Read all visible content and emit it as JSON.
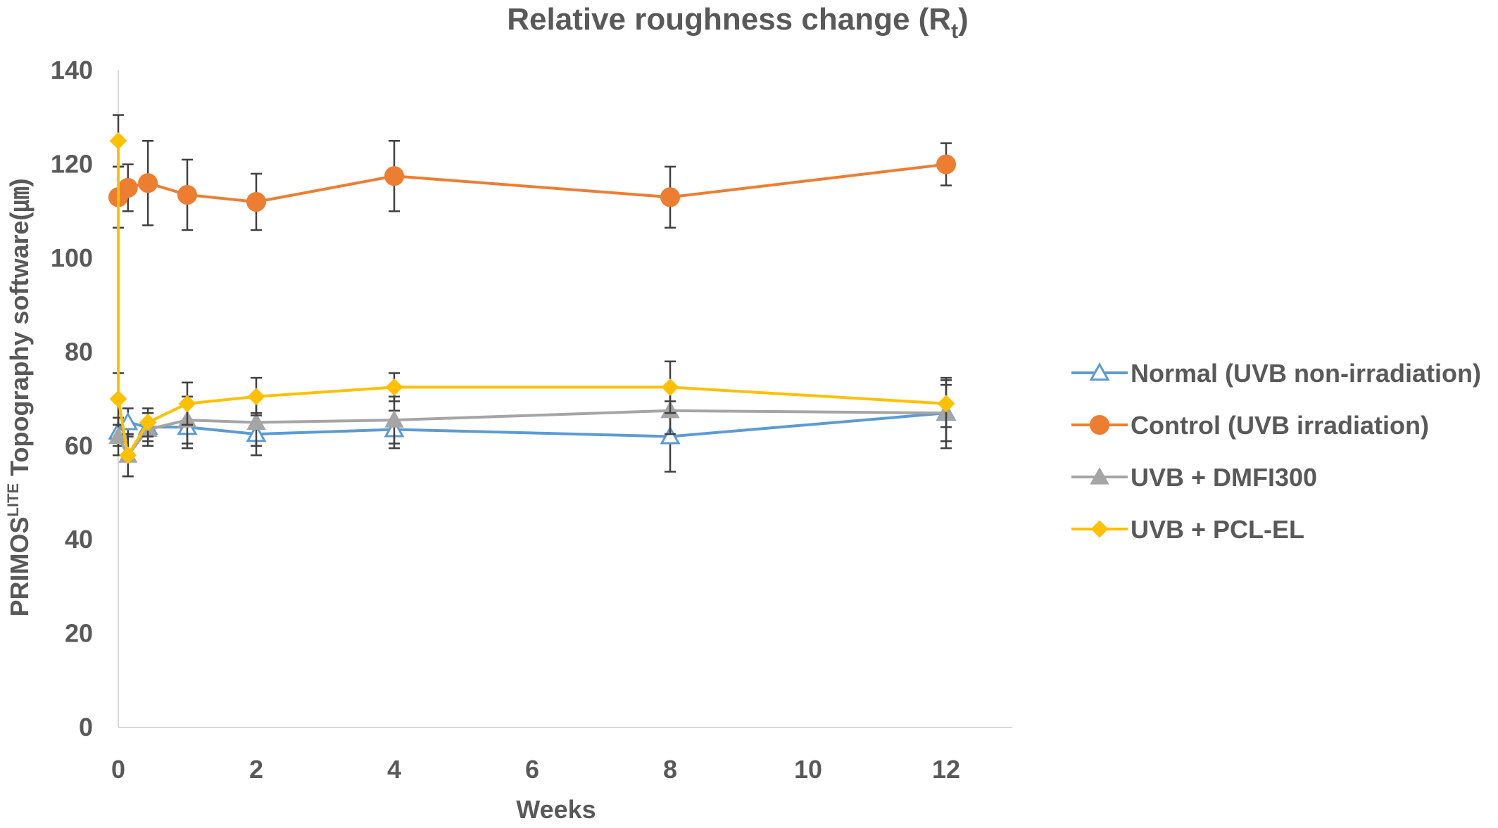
{
  "chart_data": {
    "type": "line",
    "title": "Relative roughness change (R",
    "title_subscript": "t",
    "title_close": ")",
    "xlabel": "Weeks",
    "ylabel_main": "PRIMOS",
    "ylabel_super": "LITE",
    "ylabel_rest": " Topography  software(㎛)",
    "xlim": [
      0,
      13
    ],
    "ylim": [
      0,
      140
    ],
    "xticks": [
      0,
      2,
      4,
      6,
      8,
      10,
      12
    ],
    "yticks": [
      0,
      20,
      40,
      60,
      80,
      100,
      120,
      140
    ],
    "grid": false,
    "legend_position": "right",
    "series": [
      {
        "name": "Normal (UVB non-irradiation)",
        "color": "#5B9BD5",
        "marker": "triangle-open",
        "x": [
          0,
          0.14,
          0.43,
          1,
          2,
          4,
          8,
          12
        ],
        "y": [
          63,
          65,
          64,
          64,
          62.5,
          63.5,
          62,
          67
        ],
        "err": [
          3,
          3,
          3,
          4.5,
          4.5,
          4,
          7.5,
          7.5
        ]
      },
      {
        "name": "Control (UVB irradiation)",
        "color": "#ED7D31",
        "marker": "circle",
        "x": [
          0,
          0.14,
          0.43,
          1,
          2,
          4,
          8,
          12
        ],
        "y": [
          113,
          115,
          116,
          113.5,
          112,
          117.5,
          113,
          120
        ],
        "err": [
          6.5,
          5,
          9,
          7.5,
          6,
          7.5,
          6.5,
          4.5
        ]
      },
      {
        "name": "UVB + DMFI300",
        "color": "#A5A5A5",
        "marker": "triangle",
        "x": [
          0,
          0.14,
          0.43,
          1,
          2,
          4,
          8,
          12
        ],
        "y": [
          62,
          58,
          63.5,
          65.5,
          65,
          65.5,
          67.5,
          67
        ],
        "err": [
          4,
          4.5,
          3.5,
          5,
          5,
          5,
          5,
          6
        ]
      },
      {
        "name": "UVB + PCL-EL",
        "color": "#FFC000",
        "marker": "diamond",
        "x": [
          0,
          0,
          0.14,
          0.43,
          1,
          2,
          4,
          8,
          12
        ],
        "y": [
          125,
          70,
          58,
          65,
          69,
          70.5,
          72.5,
          72.5,
          69
        ],
        "err": [
          5.5,
          5.5,
          4.5,
          3,
          4.5,
          4,
          3,
          5.5,
          5
        ]
      }
    ]
  }
}
